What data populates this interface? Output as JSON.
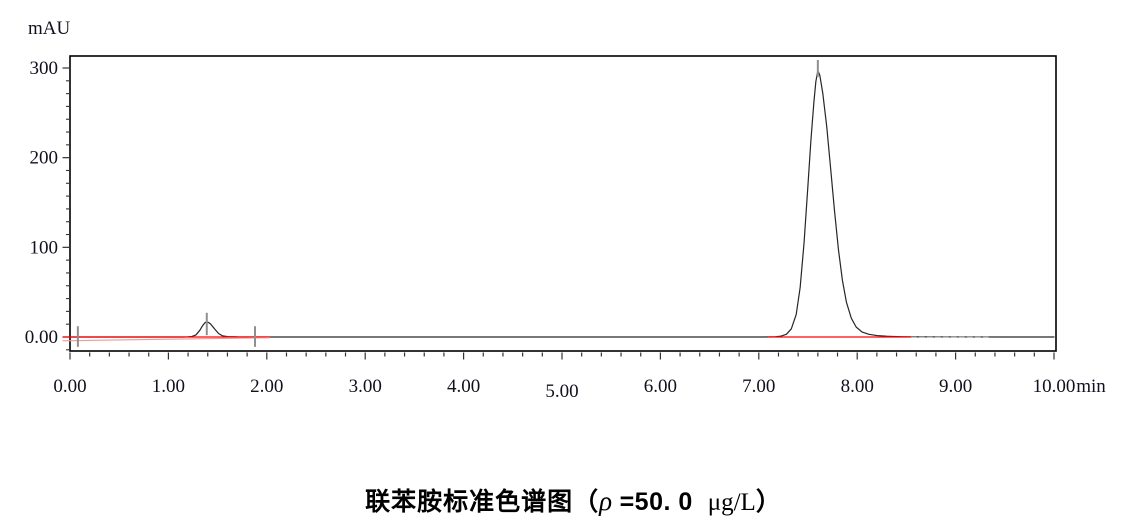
{
  "figure": {
    "y_axis_title": "mAU",
    "x_axis_unit": "min",
    "caption": {
      "prefix": "联苯胺标准色谱图（",
      "rho": "ρ",
      "equals": " =50. 0  ",
      "unit": "μg/L",
      "suffix": "）"
    }
  },
  "chart_data": {
    "type": "line",
    "title": "联苯胺标准色谱图（ρ=50.0 μg/L）",
    "xlabel": "min",
    "ylabel": "mAU",
    "xlim": [
      0,
      10
    ],
    "ylim": [
      -16,
      314
    ],
    "grid": false,
    "legend": "none",
    "x_ticks": {
      "major_values": [
        0,
        1,
        2,
        3,
        4,
        5,
        6,
        7,
        8,
        9,
        10
      ],
      "major_labels": [
        "0.00",
        "1.00",
        "2.00",
        "3.00",
        "4.00",
        "5.00",
        "6.00",
        "7.00",
        "8.00",
        "9.00",
        "10.00"
      ],
      "minor_step": 0.2,
      "unit_label": "min"
    },
    "y_ticks": {
      "major_values": [
        300,
        200,
        100,
        0
      ],
      "major_labels": [
        "300",
        "200",
        "100",
        "0.00"
      ],
      "minor_per_major": 7
    },
    "peaks": [
      {
        "name": "solvent-front-peak",
        "rt_min": 1.39,
        "height_mAU": 17
      },
      {
        "name": "benzidine-peak",
        "rt_min": 7.6,
        "height_mAU": 297
      }
    ],
    "series": [
      {
        "name": "signal-trace",
        "color": "#262626",
        "width": 1.2,
        "points": [
          [
            0,
            0
          ],
          [
            0.5,
            0
          ],
          [
            1.0,
            0
          ],
          [
            1.15,
            0
          ],
          [
            1.2,
            0.2
          ],
          [
            1.24,
            0.6
          ],
          [
            1.28,
            2.3
          ],
          [
            1.32,
            7.6
          ],
          [
            1.35,
            13
          ],
          [
            1.37,
            15.8
          ],
          [
            1.39,
            17
          ],
          [
            1.41,
            16
          ],
          [
            1.43,
            14.4
          ],
          [
            1.47,
            8.9
          ],
          [
            1.51,
            3.9
          ],
          [
            1.55,
            1.3
          ],
          [
            1.6,
            0.4
          ],
          [
            1.7,
            0.1
          ],
          [
            2.0,
            0
          ],
          [
            3.0,
            0
          ],
          [
            4.0,
            0
          ],
          [
            5.0,
            0
          ],
          [
            6.0,
            0
          ],
          [
            7.0,
            0
          ],
          [
            7.15,
            0.1
          ],
          [
            7.22,
            0.8
          ],
          [
            7.28,
            3
          ],
          [
            7.33,
            9
          ],
          [
            7.38,
            25
          ],
          [
            7.42,
            55
          ],
          [
            7.46,
            105
          ],
          [
            7.5,
            170
          ],
          [
            7.53,
            220
          ],
          [
            7.56,
            262
          ],
          [
            7.58,
            285
          ],
          [
            7.6,
            297
          ],
          [
            7.62,
            292
          ],
          [
            7.65,
            272
          ],
          [
            7.69,
            235
          ],
          [
            7.73,
            188
          ],
          [
            7.77,
            140
          ],
          [
            7.81,
            97
          ],
          [
            7.85,
            63
          ],
          [
            7.89,
            39
          ],
          [
            7.94,
            21
          ],
          [
            7.99,
            11
          ],
          [
            8.05,
            5.5
          ],
          [
            8.12,
            3
          ],
          [
            8.2,
            1.6
          ],
          [
            8.3,
            0.8
          ],
          [
            8.45,
            0.3
          ],
          [
            8.55,
            0.1
          ],
          [
            9.0,
            0.05
          ],
          [
            9.5,
            0
          ],
          [
            10.0,
            0
          ]
        ]
      },
      {
        "name": "integration-baseline-1",
        "color": "#ff0000",
        "width": 1.3,
        "points": [
          [
            -0.071,
            0
          ],
          [
            2.03,
            0
          ]
        ]
      },
      {
        "name": "blank-drift-trace",
        "color": "#f09a9a",
        "width": 1.1,
        "points": [
          [
            -0.071,
            -4.3
          ],
          [
            0.5,
            -3.3
          ],
          [
            1.2,
            -2.2
          ],
          [
            1.8,
            -1.2
          ],
          [
            2.03,
            -0.9
          ]
        ]
      },
      {
        "name": "integration-baseline-2",
        "color": "#ff0000",
        "width": 1.3,
        "points": [
          [
            7.1,
            0
          ],
          [
            8.55,
            0
          ]
        ]
      },
      {
        "name": "faded-tail-trace",
        "color": "#b3b3b3",
        "width": 1.0,
        "dash": "5 3",
        "points": [
          [
            8.55,
            -0.3
          ],
          [
            9.35,
            -0.3
          ]
        ]
      }
    ],
    "markers": [
      {
        "name": "integration-start-marker",
        "t": 0.08,
        "v_from": -11,
        "v_to": 12
      },
      {
        "name": "small-peak-apex-marker",
        "t": 1.39,
        "v_from": 2,
        "v_to": 27
      },
      {
        "name": "integration-end-marker",
        "t": 1.88,
        "v_from": -11,
        "v_to": 12
      },
      {
        "name": "main-peak-apex-marker",
        "t": 7.6,
        "v_from": 290,
        "v_to": 309
      }
    ],
    "marker_color": "#8f8f8f",
    "frame_color": "#000000",
    "tick_color": "#333333",
    "label_color": "#10101e"
  }
}
